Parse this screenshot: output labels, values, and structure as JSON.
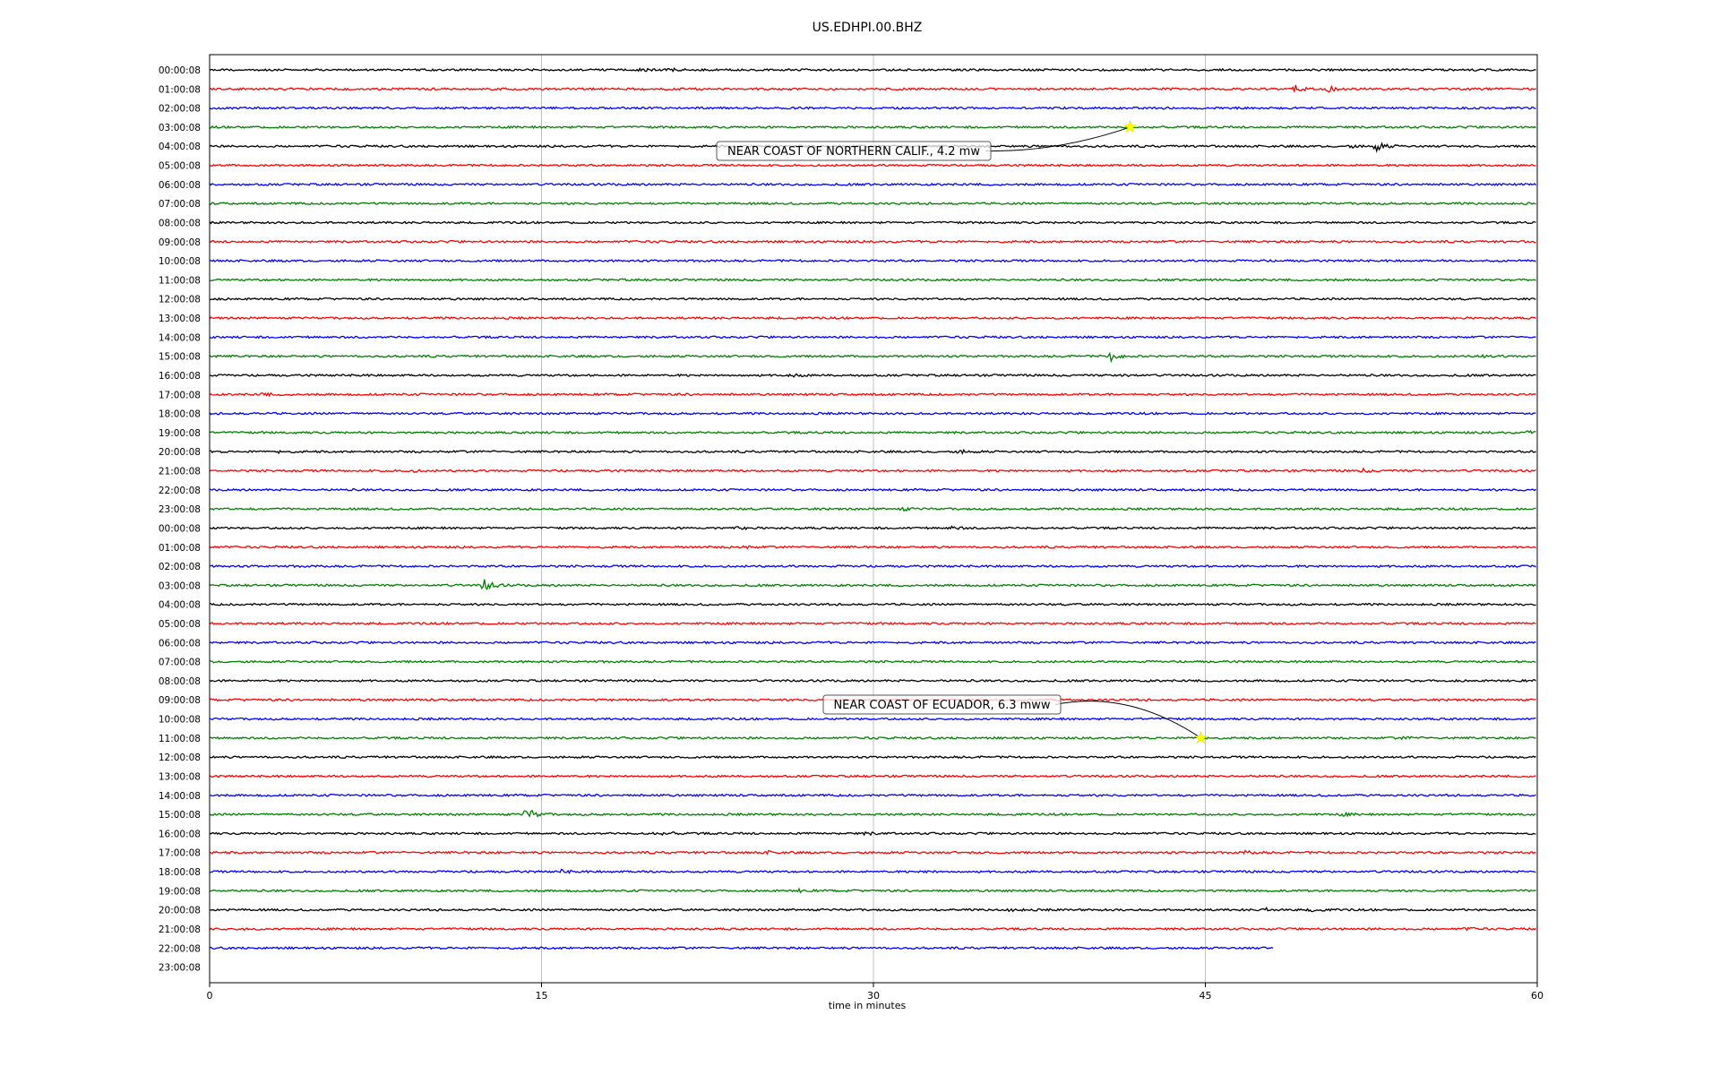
{
  "chart_data": {
    "type": "line",
    "title": "US.EDHPI.00.BHZ",
    "xlabel": "time in minutes",
    "ylabel": "",
    "xlim": [
      0,
      60
    ],
    "xticks": [
      0,
      15,
      30,
      45,
      60
    ],
    "grid": "vertical",
    "trace_colors": [
      "#000000",
      "#ff0000",
      "#0000ff",
      "#008000"
    ],
    "row_labels": [
      "00:00:08",
      "01:00:08",
      "02:00:08",
      "03:00:08",
      "04:00:08",
      "05:00:08",
      "06:00:08",
      "07:00:08",
      "08:00:08",
      "09:00:08",
      "10:00:08",
      "11:00:08",
      "12:00:08",
      "13:00:08",
      "14:00:08",
      "15:00:08",
      "16:00:08",
      "17:00:08",
      "18:00:08",
      "19:00:08",
      "20:00:08",
      "21:00:08",
      "22:00:08",
      "23:00:08",
      "00:00:08",
      "01:00:08",
      "02:00:08",
      "03:00:08",
      "04:00:08",
      "05:00:08",
      "06:00:08",
      "07:00:08",
      "08:00:08",
      "09:00:08",
      "10:00:08",
      "11:00:08",
      "12:00:08",
      "13:00:08",
      "14:00:08",
      "15:00:08",
      "16:00:08",
      "17:00:08",
      "18:00:08",
      "19:00:08",
      "20:00:08",
      "21:00:08",
      "22:00:08",
      "23:00:08"
    ],
    "last_trace_end_minute": 48.1,
    "bursts": [
      {
        "row": 0,
        "t": 19.5,
        "amp": 1.6
      },
      {
        "row": 0,
        "t": 20.8,
        "amp": 1.2
      },
      {
        "row": 1,
        "t": 49.0,
        "amp": 4.0
      },
      {
        "row": 1,
        "t": 50.5,
        "amp": 3.0
      },
      {
        "row": 4,
        "t": 52.7,
        "amp": 4.5
      },
      {
        "row": 4,
        "t": 51.5,
        "amp": 1.3
      },
      {
        "row": 15,
        "t": 40.7,
        "amp": 4.5
      },
      {
        "row": 15,
        "t": 57.4,
        "amp": 1.5
      },
      {
        "row": 16,
        "t": 41.1,
        "amp": 1.5
      },
      {
        "row": 16,
        "t": 26.2,
        "amp": 1.3
      },
      {
        "row": 17,
        "t": 2.4,
        "amp": 1.3
      },
      {
        "row": 19,
        "t": 59.6,
        "amp": 1.5
      },
      {
        "row": 20,
        "t": 2.8,
        "amp": 1.6
      },
      {
        "row": 20,
        "t": 33.9,
        "amp": 1.6
      },
      {
        "row": 21,
        "t": 8.9,
        "amp": 1.6
      },
      {
        "row": 21,
        "t": 52.1,
        "amp": 1.6
      },
      {
        "row": 23,
        "t": 31.3,
        "amp": 1.5
      },
      {
        "row": 24,
        "t": 23.8,
        "amp": 1.6
      },
      {
        "row": 24,
        "t": 33.5,
        "amp": 1.5
      },
      {
        "row": 25,
        "t": 24.0,
        "amp": 1.5
      },
      {
        "row": 27,
        "t": 12.4,
        "amp": 6.0
      },
      {
        "row": 35,
        "t": 54.0,
        "amp": 1.2
      },
      {
        "row": 39,
        "t": 14.3,
        "amp": 7.0
      },
      {
        "row": 39,
        "t": 51.2,
        "amp": 1.2
      },
      {
        "row": 40,
        "t": 19.8,
        "amp": 1.3
      },
      {
        "row": 40,
        "t": 20.6,
        "amp": 1.3
      },
      {
        "row": 40,
        "t": 29.7,
        "amp": 1.2
      },
      {
        "row": 41,
        "t": 25.2,
        "amp": 1.3
      },
      {
        "row": 41,
        "t": 46.8,
        "amp": 1.2
      },
      {
        "row": 42,
        "t": 15.9,
        "amp": 1.5
      },
      {
        "row": 42,
        "t": 32.4,
        "amp": 1.1
      },
      {
        "row": 43,
        "t": 26.6,
        "amp": 1.2
      },
      {
        "row": 44,
        "t": 36.1,
        "amp": 1.3
      },
      {
        "row": 44,
        "t": 47.7,
        "amp": 1.6
      },
      {
        "row": 44,
        "t": 49.8,
        "amp": 1.3
      },
      {
        "row": 45,
        "t": 1.3,
        "amp": 1.3
      },
      {
        "row": 45,
        "t": 56.8,
        "amp": 1.2
      }
    ],
    "annotations": [
      {
        "text": "NEAR COAST OF NORTHERN CALIF., 4.2 mw",
        "row": 3,
        "t": 41.6
      },
      {
        "text": "NEAR COAST OF ECUADOR, 6.3 mww",
        "row": 35,
        "t": 44.8
      }
    ],
    "marker_color": "#ffff00"
  }
}
